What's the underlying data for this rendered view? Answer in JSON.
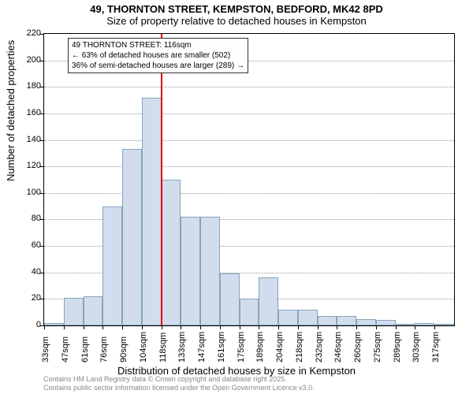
{
  "title_main": "49, THORNTON STREET, KEMPSTON, BEDFORD, MK42 8PD",
  "title_sub": "Size of property relative to detached houses in Kempston",
  "y_label": "Number of detached properties",
  "x_label": "Distribution of detached houses by size in Kempston",
  "footer_line1": "Contains HM Land Registry data © Crown copyright and database right 2025.",
  "footer_line2": "Contains public sector information licensed under the Open Government Licence v3.0.",
  "annotation": {
    "line1": "49 THORNTON STREET: 116sqm",
    "line2": "← 63% of detached houses are smaller (502)",
    "line3": "36% of semi-detached houses are larger (289) →",
    "bg": "#fefefe"
  },
  "chart": {
    "type": "histogram",
    "ylim": [
      0,
      220
    ],
    "ytick_step": 20,
    "yticks": [
      0,
      20,
      40,
      60,
      80,
      100,
      120,
      140,
      160,
      180,
      200,
      220
    ],
    "grid_color": "#999999",
    "bar_fill": "#d1dded",
    "bar_border": "#86a5bb",
    "background": "#ffffff",
    "xtick_labels": [
      "33sqm",
      "47sqm",
      "61sqm",
      "76sqm",
      "90sqm",
      "104sqm",
      "118sqm",
      "133sqm",
      "147sqm",
      "161sqm",
      "175sqm",
      "189sqm",
      "204sqm",
      "218sqm",
      "232sqm",
      "246sqm",
      "260sqm",
      "275sqm",
      "289sqm",
      "303sqm",
      "317sqm"
    ],
    "bars": [
      2,
      21,
      22,
      90,
      133,
      172,
      110,
      82,
      82,
      39,
      20,
      36,
      12,
      12,
      7,
      7,
      5,
      4,
      1,
      2,
      1
    ],
    "marker_value": 116,
    "marker_color": "#de0202",
    "x_min": 33,
    "x_max": 324
  }
}
